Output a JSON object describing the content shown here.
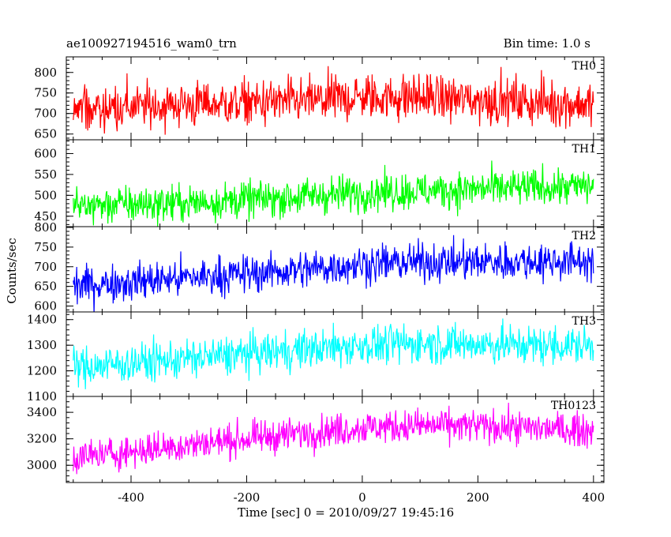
{
  "header": {
    "left": "ae100927194516_wam0_trn",
    "right": "Bin time: 1.0 s"
  },
  "chart_data": {
    "type": "line",
    "xlabel": "Time [sec] 0 = 2010/09/27 19:45:16",
    "ylabel": "Counts/sec",
    "xlim": [
      -512,
      418
    ],
    "xticks": [
      -400,
      -200,
      0,
      200,
      400
    ],
    "grid": false,
    "data_span": [
      -500,
      400
    ],
    "bin_time": 1.0,
    "panels": [
      {
        "name": "TH0",
        "color": "#ff0000",
        "ylim": [
          636,
          838
        ],
        "yticks": [
          650,
          700,
          750,
          800
        ],
        "trend": [
          [
            -500,
            712
          ],
          [
            -300,
            722
          ],
          [
            -100,
            730
          ],
          [
            0,
            740
          ],
          [
            100,
            740
          ],
          [
            200,
            733
          ],
          [
            400,
            722
          ]
        ],
        "noise_sd": 28
      },
      {
        "name": "TH1",
        "color": "#00ff00",
        "ylim": [
          425,
          633
        ],
        "yticks": [
          450,
          500,
          550,
          600
        ],
        "trend": [
          [
            -500,
            475
          ],
          [
            -300,
            482
          ],
          [
            -100,
            497
          ],
          [
            0,
            507
          ],
          [
            100,
            510
          ],
          [
            200,
            515
          ],
          [
            400,
            522
          ]
        ],
        "noise_sd": 22
      },
      {
        "name": "TH2",
        "color": "#0000ff",
        "ylim": [
          585,
          802
        ],
        "yticks": [
          600,
          650,
          700,
          750,
          800
        ],
        "trend": [
          [
            -500,
            652
          ],
          [
            -300,
            672
          ],
          [
            -100,
            693
          ],
          [
            0,
            707
          ],
          [
            100,
            712
          ],
          [
            200,
            712
          ],
          [
            400,
            715
          ]
        ],
        "noise_sd": 24
      },
      {
        "name": "TH3",
        "color": "#00ffff",
        "ylim": [
          1100,
          1430
        ],
        "yticks": [
          1100,
          1200,
          1300,
          1400
        ],
        "trend": [
          [
            -500,
            1212
          ],
          [
            -300,
            1248
          ],
          [
            -100,
            1283
          ],
          [
            0,
            1300
          ],
          [
            100,
            1307
          ],
          [
            200,
            1303
          ],
          [
            400,
            1297
          ]
        ],
        "noise_sd": 38
      },
      {
        "name": "TH0123",
        "color": "#ff00ff",
        "ylim": [
          2870,
          3520
        ],
        "yticks": [
          3000,
          3200,
          3400
        ],
        "trend": [
          [
            -500,
            3055
          ],
          [
            -300,
            3155
          ],
          [
            -100,
            3245
          ],
          [
            0,
            3285
          ],
          [
            100,
            3300
          ],
          [
            200,
            3295
          ],
          [
            400,
            3265
          ]
        ],
        "noise_sd": 62
      }
    ]
  }
}
